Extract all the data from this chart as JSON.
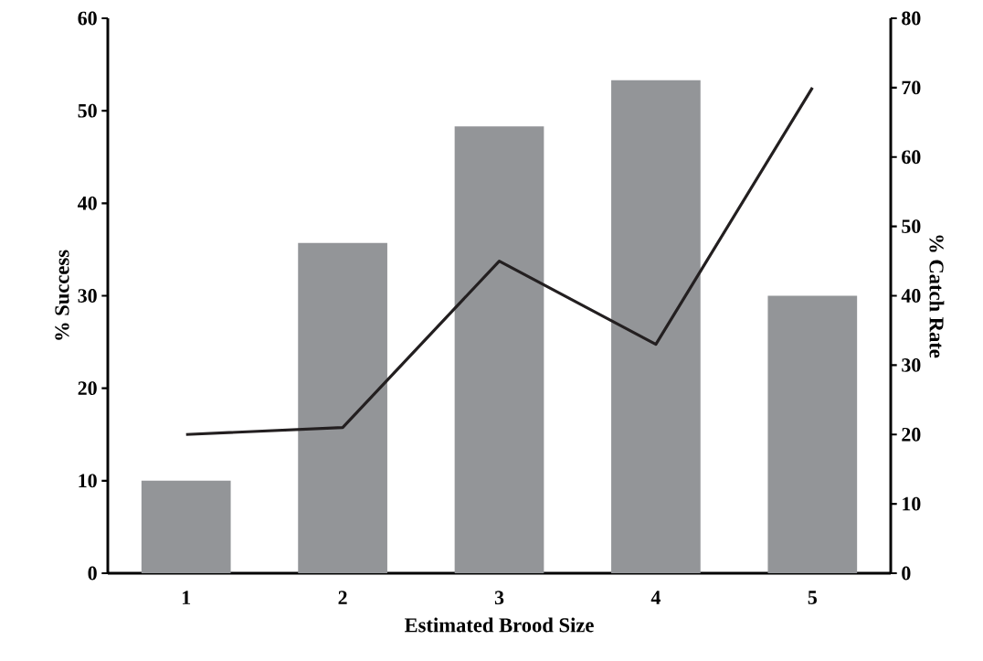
{
  "chart_data": {
    "type": "bar",
    "xlabel": "Estimated Brood Size",
    "ylabel": "% Success",
    "y2label": "% Catch Rate",
    "categories": [
      "1",
      "2",
      "3",
      "4",
      "5"
    ],
    "series": [
      {
        "color": "#939598",
        "values": [
          10,
          35.7,
          48.3,
          53.3,
          30
        ]
      },
      {
        "type": "line",
        "axis": "y2",
        "color": "#231f20",
        "values": [
          20,
          21,
          45,
          33,
          70
        ]
      }
    ],
    "ylim": [
      0,
      60
    ],
    "yticks": [
      0,
      10,
      20,
      30,
      40,
      50,
      60
    ],
    "y2lim": [
      0,
      80
    ],
    "y2ticks": [
      0,
      10,
      20,
      30,
      40,
      50,
      60,
      70,
      80
    ]
  }
}
